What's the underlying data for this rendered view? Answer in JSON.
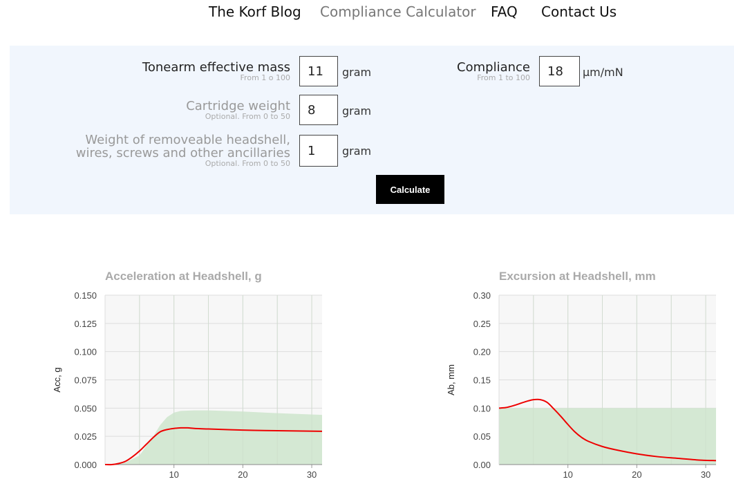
{
  "nav": {
    "items": [
      {
        "label": "The Korf Blog"
      },
      {
        "label": "Compliance Calculator"
      },
      {
        "label": "FAQ"
      },
      {
        "label": "Contact Us"
      }
    ]
  },
  "form": {
    "tonearm": {
      "label": "Tonearm effective mass",
      "hint": "From 1 o 100",
      "value": "11",
      "unit": "gram"
    },
    "cartridge": {
      "label": "Cartridge weight",
      "hint": "Optional. From 0 to 50",
      "value": "8",
      "unit": "gram"
    },
    "headshell": {
      "label_line1": "Weight of removeable headshell,",
      "label_line2": "wires, screws and other ancillaries",
      "hint": "Optional. From 0 to 50",
      "value": "1",
      "unit": "gram"
    },
    "compliance": {
      "label": "Compliance",
      "hint": "From 1 to 100",
      "value": "18",
      "unit": "μm/mN"
    },
    "calculate_label": "Calculate"
  },
  "chart_data": [
    {
      "type": "area",
      "title": "Acceleration at Headshell, g",
      "xlabel": "",
      "ylabel": "Acc, g",
      "xlim": [
        0,
        31.5
      ],
      "ylim": [
        0,
        0.15
      ],
      "x_ticks": [
        "10",
        "20",
        "30"
      ],
      "y_ticks": [
        "0.000",
        "0.025",
        "0.050",
        "0.075",
        "0.100",
        "0.125",
        "0.150"
      ],
      "grid": true,
      "colors": {
        "line": "#ee0000",
        "area": "#d4e8d3",
        "plot_bg": "#f7f7f7",
        "grid": "#dddddd"
      },
      "series": [
        {
          "type": "area",
          "points": [
            [
              0,
              0
            ],
            [
              3,
              0.002
            ],
            [
              5,
              0.008
            ],
            [
              7,
              0.025
            ],
            [
              8,
              0.035
            ],
            [
              9,
              0.042
            ],
            [
              10,
              0.046
            ],
            [
              11,
              0.0475
            ],
            [
              13,
              0.048
            ],
            [
              15,
              0.048
            ],
            [
              20,
              0.047
            ],
            [
              25,
              0.0455
            ],
            [
              31.5,
              0.044
            ]
          ]
        },
        {
          "type": "line",
          "points": [
            [
              0,
              0
            ],
            [
              1,
              0
            ],
            [
              2,
              0.001
            ],
            [
              3,
              0.003
            ],
            [
              4,
              0.007
            ],
            [
              5,
              0.012
            ],
            [
              6,
              0.018
            ],
            [
              7,
              0.024
            ],
            [
              8,
              0.029
            ],
            [
              9,
              0.031
            ],
            [
              10,
              0.032
            ],
            [
              11,
              0.0325
            ],
            [
              12,
              0.0325
            ],
            [
              13,
              0.032
            ],
            [
              15,
              0.0315
            ],
            [
              20,
              0.0305
            ],
            [
              25,
              0.03
            ],
            [
              31.5,
              0.0295
            ]
          ]
        }
      ]
    },
    {
      "type": "area",
      "title": "Excursion at Headshell, mm",
      "xlabel": "",
      "ylabel": "Ab, mm",
      "xlim": [
        0,
        31.5
      ],
      "ylim": [
        0,
        0.3
      ],
      "x_ticks": [
        "10",
        "20",
        "30"
      ],
      "y_ticks": [
        "0.00",
        "0.05",
        "0.10",
        "0.15",
        "0.20",
        "0.25",
        "0.30"
      ],
      "grid": true,
      "colors": {
        "line": "#ee0000",
        "area": "#d4e8d3",
        "plot_bg": "#f7f7f7",
        "grid": "#dddddd"
      },
      "series": [
        {
          "type": "area",
          "points": [
            [
              0,
              0.1
            ],
            [
              31.5,
              0.1
            ]
          ]
        },
        {
          "type": "line",
          "points": [
            [
              0,
              0.1
            ],
            [
              1,
              0.101
            ],
            [
              2,
              0.104
            ],
            [
              3,
              0.108
            ],
            [
              4,
              0.112
            ],
            [
              5,
              0.115
            ],
            [
              6,
              0.115
            ],
            [
              7,
              0.11
            ],
            [
              8,
              0.098
            ],
            [
              9,
              0.085
            ],
            [
              10,
              0.071
            ],
            [
              11,
              0.058
            ],
            [
              12,
              0.048
            ],
            [
              13,
              0.041
            ],
            [
              15,
              0.032
            ],
            [
              17,
              0.026
            ],
            [
              20,
              0.019
            ],
            [
              23,
              0.014
            ],
            [
              26,
              0.011
            ],
            [
              29,
              0.008
            ],
            [
              31.5,
              0.007
            ]
          ]
        }
      ]
    }
  ]
}
